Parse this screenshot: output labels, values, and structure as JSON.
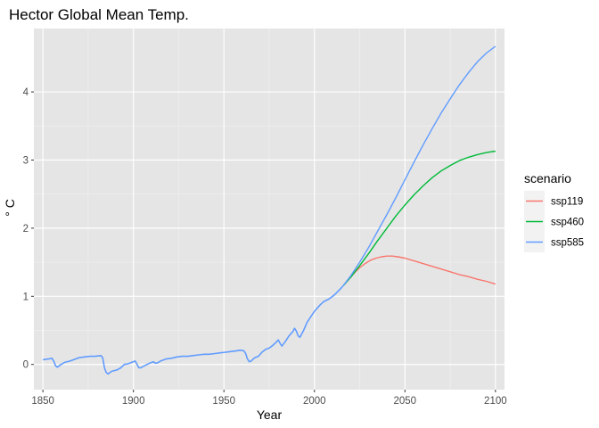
{
  "chart_data": {
    "type": "line",
    "title": "Hector Global Mean Temp.",
    "xlabel": "Year",
    "ylabel": "° C",
    "xlim": [
      1845,
      2105
    ],
    "ylim": [
      -0.37,
      4.93
    ],
    "xticks": [
      1850,
      1900,
      1950,
      2000,
      2050,
      2100
    ],
    "xtick_labels": [
      "1850",
      "1900",
      "1950",
      "2000",
      "2050",
      "2100"
    ],
    "yticks": [
      0,
      1,
      2,
      3,
      4
    ],
    "ytick_labels": [
      "0",
      "1",
      "2",
      "3",
      "4"
    ],
    "grid": true,
    "background": "#e5e5e5",
    "legend": {
      "title": "scenario",
      "placement": "right"
    },
    "historical_color": "#619cff",
    "historical": [
      [
        1850,
        0.07
      ],
      [
        1853,
        0.08
      ],
      [
        1855,
        0.09
      ],
      [
        1856,
        0.05
      ],
      [
        1857,
        -0.02
      ],
      [
        1858,
        -0.04
      ],
      [
        1860,
        0.0
      ],
      [
        1862,
        0.03
      ],
      [
        1865,
        0.05
      ],
      [
        1868,
        0.08
      ],
      [
        1870,
        0.1
      ],
      [
        1873,
        0.11
      ],
      [
        1876,
        0.12
      ],
      [
        1879,
        0.12
      ],
      [
        1882,
        0.13
      ],
      [
        1883,
        0.1
      ],
      [
        1884,
        -0.05
      ],
      [
        1885,
        -0.12
      ],
      [
        1886,
        -0.14
      ],
      [
        1888,
        -0.1
      ],
      [
        1891,
        -0.08
      ],
      [
        1893,
        -0.05
      ],
      [
        1895,
        0.0
      ],
      [
        1897,
        0.01
      ],
      [
        1899,
        0.03
      ],
      [
        1901,
        0.05
      ],
      [
        1902,
        0.0
      ],
      [
        1903,
        -0.05
      ],
      [
        1904,
        -0.05
      ],
      [
        1906,
        -0.02
      ],
      [
        1909,
        0.02
      ],
      [
        1911,
        0.04
      ],
      [
        1912,
        0.02
      ],
      [
        1913,
        0.02
      ],
      [
        1915,
        0.05
      ],
      [
        1918,
        0.08
      ],
      [
        1921,
        0.09
      ],
      [
        1924,
        0.11
      ],
      [
        1927,
        0.12
      ],
      [
        1930,
        0.12
      ],
      [
        1933,
        0.13
      ],
      [
        1936,
        0.14
      ],
      [
        1939,
        0.15
      ],
      [
        1942,
        0.15
      ],
      [
        1945,
        0.16
      ],
      [
        1948,
        0.17
      ],
      [
        1951,
        0.18
      ],
      [
        1954,
        0.19
      ],
      [
        1957,
        0.2
      ],
      [
        1959,
        0.21
      ],
      [
        1961,
        0.2
      ],
      [
        1962,
        0.16
      ],
      [
        1963,
        0.08
      ],
      [
        1964,
        0.04
      ],
      [
        1965,
        0.05
      ],
      [
        1967,
        0.1
      ],
      [
        1969,
        0.12
      ],
      [
        1971,
        0.18
      ],
      [
        1973,
        0.22
      ],
      [
        1975,
        0.24
      ],
      [
        1977,
        0.28
      ],
      [
        1979,
        0.33
      ],
      [
        1980,
        0.36
      ],
      [
        1981,
        0.31
      ],
      [
        1982,
        0.27
      ],
      [
        1984,
        0.34
      ],
      [
        1986,
        0.42
      ],
      [
        1988,
        0.48
      ],
      [
        1989,
        0.53
      ],
      [
        1990,
        0.49
      ],
      [
        1991,
        0.42
      ],
      [
        1992,
        0.4
      ],
      [
        1994,
        0.5
      ],
      [
        1996,
        0.62
      ],
      [
        1998,
        0.7
      ],
      [
        2000,
        0.78
      ],
      [
        2003,
        0.87
      ],
      [
        2005,
        0.92
      ],
      [
        2008,
        0.96
      ],
      [
        2011,
        1.02
      ],
      [
        2014,
        1.1
      ],
      [
        2016,
        1.16
      ]
    ],
    "series": [
      {
        "name": "ssp119",
        "color": "#f8766d",
        "points": [
          [
            2016,
            1.16
          ],
          [
            2018,
            1.22
          ],
          [
            2020,
            1.28
          ],
          [
            2022,
            1.34
          ],
          [
            2025,
            1.42
          ],
          [
            2028,
            1.48
          ],
          [
            2031,
            1.53
          ],
          [
            2034,
            1.56
          ],
          [
            2037,
            1.58
          ],
          [
            2040,
            1.59
          ],
          [
            2043,
            1.59
          ],
          [
            2046,
            1.58
          ],
          [
            2050,
            1.56
          ],
          [
            2055,
            1.52
          ],
          [
            2060,
            1.48
          ],
          [
            2065,
            1.44
          ],
          [
            2070,
            1.4
          ],
          [
            2075,
            1.36
          ],
          [
            2080,
            1.32
          ],
          [
            2085,
            1.29
          ],
          [
            2090,
            1.25
          ],
          [
            2095,
            1.22
          ],
          [
            2100,
            1.18
          ]
        ]
      },
      {
        "name": "ssp460",
        "color": "#00ba38",
        "points": [
          [
            2016,
            1.16
          ],
          [
            2020,
            1.28
          ],
          [
            2025,
            1.45
          ],
          [
            2030,
            1.63
          ],
          [
            2035,
            1.82
          ],
          [
            2040,
            2.0
          ],
          [
            2045,
            2.18
          ],
          [
            2050,
            2.34
          ],
          [
            2055,
            2.49
          ],
          [
            2060,
            2.62
          ],
          [
            2065,
            2.74
          ],
          [
            2070,
            2.84
          ],
          [
            2075,
            2.92
          ],
          [
            2080,
            2.99
          ],
          [
            2085,
            3.04
          ],
          [
            2090,
            3.08
          ],
          [
            2095,
            3.11
          ],
          [
            2100,
            3.13
          ]
        ]
      },
      {
        "name": "ssp585",
        "color": "#619cff",
        "points": [
          [
            2016,
            1.16
          ],
          [
            2020,
            1.3
          ],
          [
            2025,
            1.5
          ],
          [
            2030,
            1.72
          ],
          [
            2035,
            1.96
          ],
          [
            2040,
            2.2
          ],
          [
            2045,
            2.45
          ],
          [
            2050,
            2.71
          ],
          [
            2055,
            2.97
          ],
          [
            2060,
            3.22
          ],
          [
            2065,
            3.46
          ],
          [
            2070,
            3.69
          ],
          [
            2075,
            3.9
          ],
          [
            2080,
            4.1
          ],
          [
            2085,
            4.28
          ],
          [
            2090,
            4.44
          ],
          [
            2095,
            4.57
          ],
          [
            2100,
            4.67
          ]
        ]
      }
    ]
  }
}
